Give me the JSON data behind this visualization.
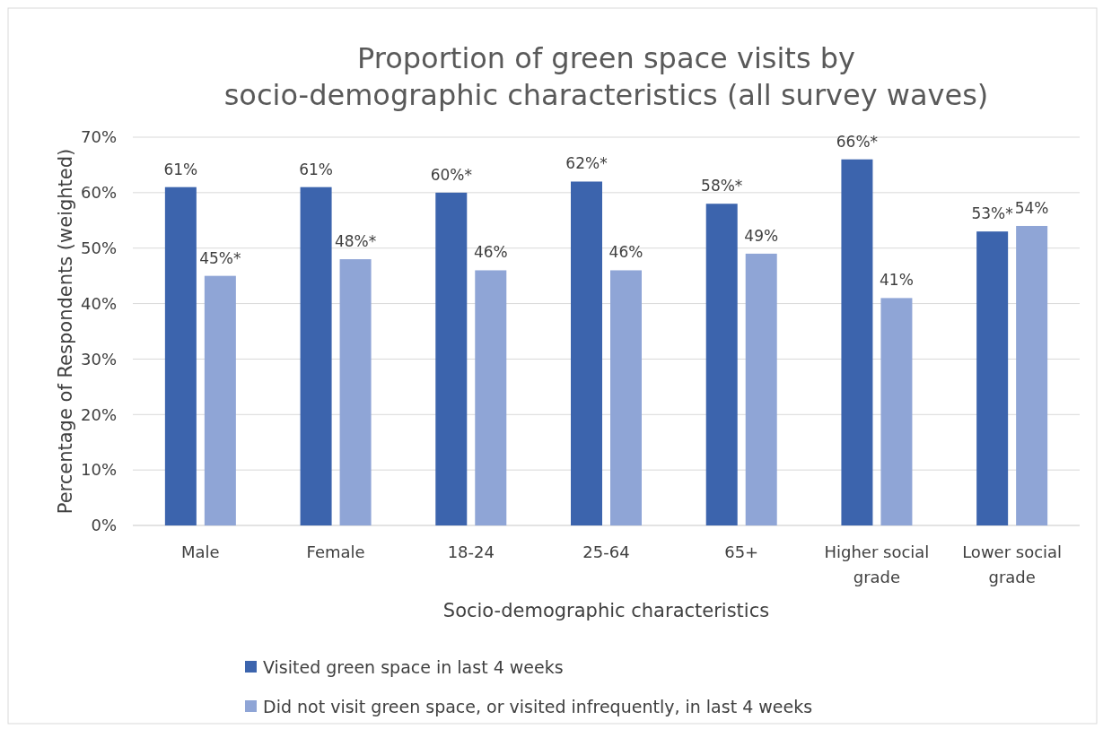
{
  "chart_data": {
    "type": "bar",
    "title": "Proportion of green space visits by socio-demographic characteristics (all survey waves)",
    "xlabel": "Socio-demographic characteristics",
    "ylabel": "Percentage of Respondents (weighted)",
    "categories": [
      "Male",
      "Female",
      "18-24",
      "25-64",
      "65+",
      "Higher social grade",
      "Lower social grade"
    ],
    "series": [
      {
        "name": "Visited green space in last 4 weeks",
        "color": "#3c64ad",
        "values": [
          61,
          61,
          60,
          62,
          58,
          66,
          53
        ],
        "value_labels": [
          "61%",
          "61%",
          "60%*",
          "62%*",
          "58%*",
          "66%*",
          "53%*"
        ]
      },
      {
        "name": "Did not visit green space, or visited infrequently, in last 4 weeks",
        "color": "#8fa5d6",
        "values": [
          45,
          48,
          46,
          46,
          49,
          41,
          54
        ],
        "value_labels": [
          "45%*",
          "48%*",
          "46%",
          "46%",
          "49%",
          "41%",
          "54%"
        ]
      }
    ],
    "ylim": [
      0,
      70
    ],
    "yticks": [
      {
        "value": 0,
        "label": "0%"
      },
      {
        "value": 10,
        "label": "10%"
      },
      {
        "value": 20,
        "label": "20%"
      },
      {
        "value": 30,
        "label": "30%"
      },
      {
        "value": 40,
        "label": "40%"
      },
      {
        "value": 50,
        "label": "50%"
      },
      {
        "value": 60,
        "label": "60%"
      },
      {
        "value": 70,
        "label": "70%"
      }
    ],
    "grid": "y",
    "legend": "bottom"
  }
}
